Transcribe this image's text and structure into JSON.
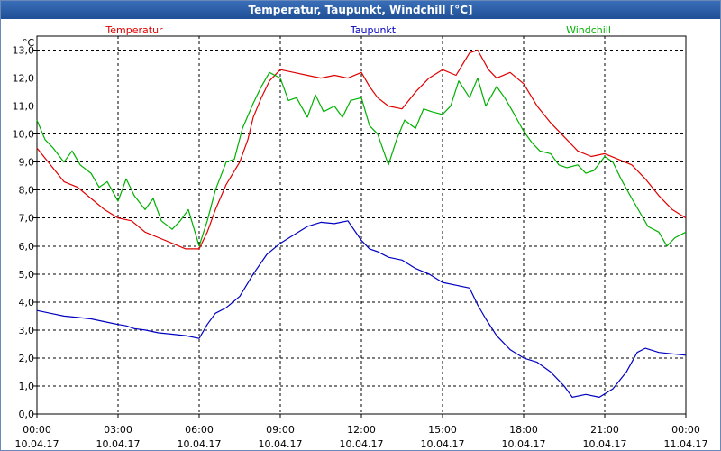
{
  "chart_data": {
    "type": "line",
    "title": "Temperatur, Taupunkt, Windchill [°C]",
    "ylabel": "°C",
    "ylim": [
      0,
      13.5
    ],
    "yticks": [
      "0,0",
      "1,0",
      "2,0",
      "3,0",
      "4,0",
      "5,0",
      "6,0",
      "7,0",
      "8,0",
      "9,0",
      "10,0",
      "11,0",
      "12,0",
      "13,0"
    ],
    "xlim": [
      0,
      24
    ],
    "xticks": [
      {
        "time": "00:00",
        "date": "10.04.17"
      },
      {
        "time": "03:00",
        "date": "10.04.17"
      },
      {
        "time": "06:00",
        "date": "10.04.17"
      },
      {
        "time": "09:00",
        "date": "10.04.17"
      },
      {
        "time": "12:00",
        "date": "10.04.17"
      },
      {
        "time": "15:00",
        "date": "10.04.17"
      },
      {
        "time": "18:00",
        "date": "10.04.17"
      },
      {
        "time": "21:00",
        "date": "10.04.17"
      },
      {
        "time": "00:00",
        "date": "11.04.17"
      }
    ],
    "grid": true,
    "series": [
      {
        "name": "Temperatur",
        "color": "#e00000",
        "points": [
          [
            0,
            9.5
          ],
          [
            0.5,
            8.9
          ],
          [
            1,
            8.3
          ],
          [
            1.5,
            8.1
          ],
          [
            2,
            7.7
          ],
          [
            2.5,
            7.3
          ],
          [
            3,
            7.0
          ],
          [
            3.5,
            6.9
          ],
          [
            4,
            6.5
          ],
          [
            4.5,
            6.3
          ],
          [
            5,
            6.1
          ],
          [
            5.5,
            5.9
          ],
          [
            6,
            5.9
          ],
          [
            6.3,
            6.5
          ],
          [
            6.6,
            7.3
          ],
          [
            7,
            8.2
          ],
          [
            7.5,
            9.0
          ],
          [
            7.8,
            9.8
          ],
          [
            8,
            10.6
          ],
          [
            8.3,
            11.3
          ],
          [
            8.6,
            11.9
          ],
          [
            9,
            12.3
          ],
          [
            9.5,
            12.2
          ],
          [
            10,
            12.1
          ],
          [
            10.5,
            12.0
          ],
          [
            11,
            12.1
          ],
          [
            11.5,
            12.0
          ],
          [
            12,
            12.2
          ],
          [
            12.3,
            11.7
          ],
          [
            12.6,
            11.3
          ],
          [
            13,
            11.0
          ],
          [
            13.5,
            10.9
          ],
          [
            14,
            11.5
          ],
          [
            14.5,
            12.0
          ],
          [
            15,
            12.3
          ],
          [
            15.5,
            12.1
          ],
          [
            16,
            12.9
          ],
          [
            16.3,
            13.0
          ],
          [
            16.7,
            12.3
          ],
          [
            17,
            12.0
          ],
          [
            17.5,
            12.2
          ],
          [
            18,
            11.8
          ],
          [
            18.5,
            11.0
          ],
          [
            19,
            10.4
          ],
          [
            19.5,
            9.9
          ],
          [
            20,
            9.4
          ],
          [
            20.5,
            9.2
          ],
          [
            21,
            9.3
          ],
          [
            21.5,
            9.1
          ],
          [
            22,
            8.9
          ],
          [
            22.5,
            8.4
          ],
          [
            23,
            7.8
          ],
          [
            23.5,
            7.3
          ],
          [
            24,
            7.0
          ]
        ]
      },
      {
        "name": "Taupunkt",
        "color": "#0000c0",
        "points": [
          [
            0,
            3.7
          ],
          [
            0.5,
            3.6
          ],
          [
            1,
            3.5
          ],
          [
            1.5,
            3.45
          ],
          [
            2,
            3.4
          ],
          [
            2.5,
            3.3
          ],
          [
            3,
            3.2
          ],
          [
            3.3,
            3.15
          ],
          [
            3.6,
            3.05
          ],
          [
            4,
            3.0
          ],
          [
            4.5,
            2.9
          ],
          [
            5,
            2.85
          ],
          [
            5.5,
            2.8
          ],
          [
            6,
            2.7
          ],
          [
            6.3,
            3.2
          ],
          [
            6.6,
            3.6
          ],
          [
            7,
            3.8
          ],
          [
            7.5,
            4.2
          ],
          [
            8,
            5.0
          ],
          [
            8.5,
            5.7
          ],
          [
            9,
            6.1
          ],
          [
            9.5,
            6.4
          ],
          [
            10,
            6.7
          ],
          [
            10.5,
            6.85
          ],
          [
            11,
            6.8
          ],
          [
            11.5,
            6.9
          ],
          [
            12,
            6.2
          ],
          [
            12.3,
            5.9
          ],
          [
            12.6,
            5.8
          ],
          [
            13,
            5.6
          ],
          [
            13.5,
            5.5
          ],
          [
            14,
            5.2
          ],
          [
            14.5,
            5.0
          ],
          [
            15,
            4.7
          ],
          [
            15.5,
            4.6
          ],
          [
            16,
            4.5
          ],
          [
            16.3,
            3.9
          ],
          [
            16.6,
            3.4
          ],
          [
            17,
            2.8
          ],
          [
            17.5,
            2.3
          ],
          [
            18,
            2.0
          ],
          [
            18.5,
            1.85
          ],
          [
            19,
            1.5
          ],
          [
            19.5,
            1.0
          ],
          [
            19.8,
            0.6
          ],
          [
            20.3,
            0.7
          ],
          [
            20.8,
            0.6
          ],
          [
            21.3,
            0.9
          ],
          [
            21.8,
            1.5
          ],
          [
            22.2,
            2.2
          ],
          [
            22.5,
            2.35
          ],
          [
            23,
            2.2
          ],
          [
            23.5,
            2.15
          ],
          [
            24,
            2.1
          ]
        ]
      },
      {
        "name": "Windchill",
        "color": "#00b000",
        "points": [
          [
            0,
            10.5
          ],
          [
            0.3,
            9.8
          ],
          [
            0.6,
            9.5
          ],
          [
            1,
            9.0
          ],
          [
            1.3,
            9.4
          ],
          [
            1.6,
            8.9
          ],
          [
            2,
            8.6
          ],
          [
            2.3,
            8.1
          ],
          [
            2.6,
            8.3
          ],
          [
            3,
            7.6
          ],
          [
            3.3,
            8.4
          ],
          [
            3.6,
            7.8
          ],
          [
            4,
            7.3
          ],
          [
            4.3,
            7.7
          ],
          [
            4.6,
            6.9
          ],
          [
            5,
            6.6
          ],
          [
            5.3,
            6.9
          ],
          [
            5.6,
            7.3
          ],
          [
            6,
            6.0
          ],
          [
            6.3,
            6.9
          ],
          [
            6.6,
            8.0
          ],
          [
            7,
            9.0
          ],
          [
            7.3,
            9.1
          ],
          [
            7.6,
            10.2
          ],
          [
            8,
            11.1
          ],
          [
            8.3,
            11.7
          ],
          [
            8.6,
            12.2
          ],
          [
            9,
            12.0
          ],
          [
            9.3,
            11.2
          ],
          [
            9.6,
            11.3
          ],
          [
            10,
            10.6
          ],
          [
            10.3,
            11.4
          ],
          [
            10.6,
            10.8
          ],
          [
            11,
            11.0
          ],
          [
            11.3,
            10.6
          ],
          [
            11.6,
            11.2
          ],
          [
            12,
            11.3
          ],
          [
            12.3,
            10.3
          ],
          [
            12.6,
            10.0
          ],
          [
            13,
            8.9
          ],
          [
            13.3,
            9.8
          ],
          [
            13.6,
            10.5
          ],
          [
            14,
            10.2
          ],
          [
            14.3,
            10.9
          ],
          [
            14.6,
            10.8
          ],
          [
            15,
            10.7
          ],
          [
            15.3,
            11.0
          ],
          [
            15.6,
            11.9
          ],
          [
            16,
            11.3
          ],
          [
            16.3,
            12.0
          ],
          [
            16.6,
            11.0
          ],
          [
            17,
            11.7
          ],
          [
            17.3,
            11.3
          ],
          [
            17.6,
            10.8
          ],
          [
            18,
            10.1
          ],
          [
            18.3,
            9.7
          ],
          [
            18.6,
            9.4
          ],
          [
            19,
            9.3
          ],
          [
            19.3,
            8.9
          ],
          [
            19.6,
            8.8
          ],
          [
            20,
            8.9
          ],
          [
            20.3,
            8.6
          ],
          [
            20.6,
            8.7
          ],
          [
            21,
            9.2
          ],
          [
            21.3,
            9.0
          ],
          [
            21.6,
            8.4
          ],
          [
            22,
            7.7
          ],
          [
            22.3,
            7.2
          ],
          [
            22.6,
            6.7
          ],
          [
            23,
            6.5
          ],
          [
            23.3,
            6.0
          ],
          [
            23.6,
            6.3
          ],
          [
            24,
            6.5
          ]
        ]
      }
    ]
  }
}
